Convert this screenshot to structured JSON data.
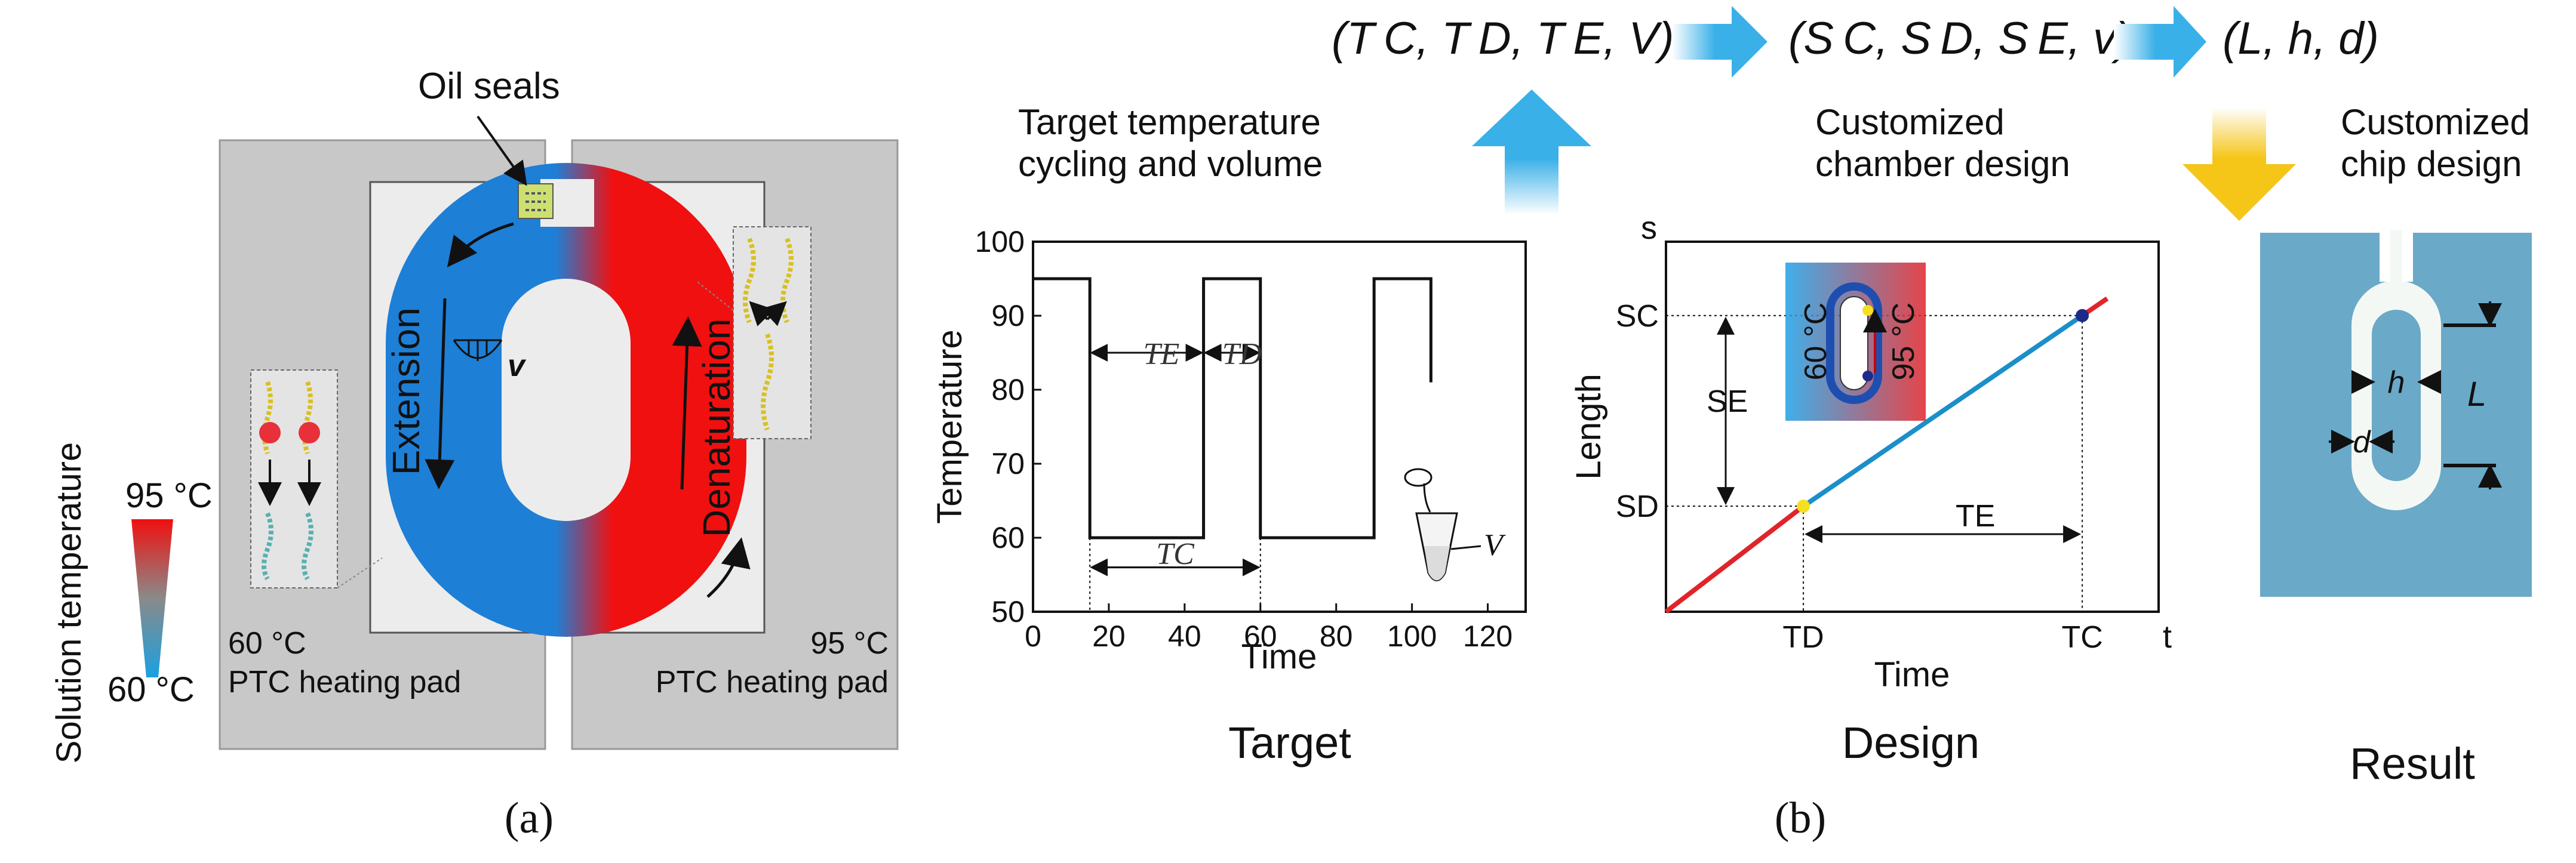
{
  "colors": {
    "cold": "#1e7fd6",
    "hot": "#f01010",
    "pad": "#c8c8c8",
    "chip": "#6aa9c8",
    "flow_arrow": "#3ab0e8",
    "yellow_arrow": "#f5c518",
    "plot_red": "#e0242a",
    "plot_blue": "#1b8fc9"
  },
  "panel_a": {
    "oil_seals": "Oil seals",
    "extension": "Extension",
    "denaturation": "Denaturation",
    "velocity": "v",
    "legend_title": "Solution temperature",
    "legend_high": "95 °C",
    "legend_low": "60 °C",
    "left_pad_temp": "60 °C",
    "left_pad_name": "PTC heating pad",
    "right_pad_temp": "95 °C",
    "right_pad_name": "PTC heating pad",
    "caption": "(a)"
  },
  "panel_b": {
    "top_target": "(T C, T D, T E, V)",
    "top_design": "(S C, S D, S E, v)",
    "top_result": "(L, h, d)",
    "sub": {
      "target_line1": "Target temperature",
      "target_line2": "cycling and volume",
      "design_line1": "Customized",
      "design_line2": "chamber design",
      "result_line1": "Customized",
      "result_line2": "chip design"
    },
    "labels": {
      "target": "Target",
      "design": "Design",
      "result": "Result"
    },
    "caption": "(b)"
  },
  "chart_data": [
    {
      "type": "line",
      "xlabel": "Time",
      "ylabel": "Temperature",
      "xlim": [
        0,
        130
      ],
      "ylim": [
        50,
        100
      ],
      "x_ticks": [
        "0",
        "20",
        "40",
        "60",
        "80",
        "100",
        "120"
      ],
      "y_ticks": [
        "50",
        "60",
        "70",
        "80",
        "90",
        "100"
      ],
      "series": [
        {
          "x": [
            0,
            15,
            15,
            45,
            45,
            60,
            60,
            90,
            90,
            105,
            105
          ],
          "y": [
            95,
            95,
            60,
            60,
            95,
            95,
            60,
            60,
            95,
            95,
            81
          ]
        }
      ],
      "annotations": {
        "te": "TE",
        "td": "TD",
        "tc": "TC",
        "volume": "V"
      }
    },
    {
      "type": "line",
      "xlabel": "Time",
      "ylabel": "Length",
      "x_axis_end": "t",
      "y_axis_end": "s",
      "x_ticks": [
        "TD",
        "TC"
      ],
      "y_ticks": [
        "SD",
        "SC"
      ],
      "series": [
        {
          "name": "red",
          "x": [
            0,
            0.33
          ],
          "y": [
            0,
            0.31
          ]
        },
        {
          "name": "blue",
          "x": [
            0.33,
            1.0
          ],
          "y": [
            0.31,
            0.87
          ]
        },
        {
          "name": "red",
          "x": [
            1.0,
            1.06
          ],
          "y": [
            0.87,
            0.92
          ]
        }
      ],
      "annotations": {
        "se": "SE",
        "te": "TE",
        "inset_cold": "60 °C",
        "inset_hot": "95 °C"
      }
    }
  ],
  "panel_result": {
    "h": "h",
    "d": "d",
    "L": "L"
  }
}
